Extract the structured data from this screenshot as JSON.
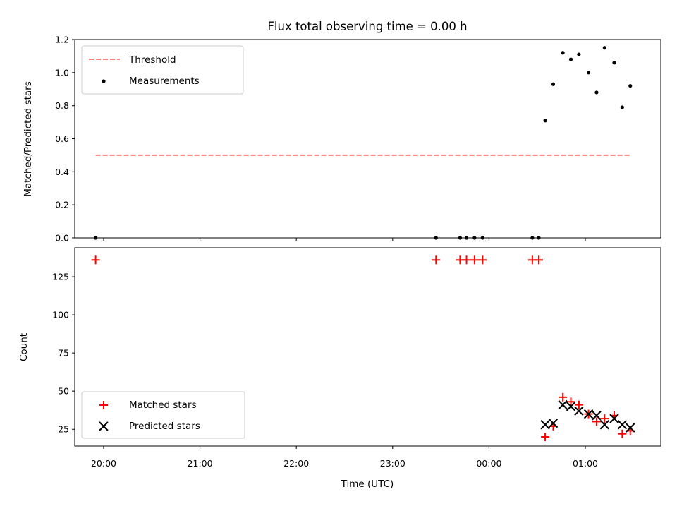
{
  "chart_data": [
    {
      "type": "scatter",
      "title": "Flux total observing time = 0.00 h",
      "ylabel": "Matched/Predicted stars",
      "xlabel": "",
      "ylim": [
        0,
        1.2
      ],
      "yticks": [
        "0.0",
        "0.2",
        "0.4",
        "0.6",
        "0.8",
        "1.0",
        "1.2"
      ],
      "x_time_range": [
        "19:42",
        "01:47"
      ],
      "grid": false,
      "legend": {
        "placement": "top-left",
        "entries": [
          "Threshold",
          "Measurements"
        ]
      },
      "threshold": {
        "name": "Threshold",
        "value": 0.5,
        "x_start": "19:55",
        "x_end": "01:28",
        "color": "#ff7f7f",
        "style": "dashed"
      },
      "series": [
        {
          "name": "Measurements",
          "color": "#000000",
          "marker": "dot",
          "points": [
            {
              "x": "19:55",
              "y": 0.0
            },
            {
              "x": "23:27",
              "y": 0.0
            },
            {
              "x": "23:42",
              "y": 0.0
            },
            {
              "x": "23:46",
              "y": 0.0
            },
            {
              "x": "23:51",
              "y": 0.0
            },
            {
              "x": "23:56",
              "y": 0.0
            },
            {
              "x": "00:27",
              "y": 0.0
            },
            {
              "x": "00:31",
              "y": 0.0
            },
            {
              "x": "00:35",
              "y": 0.71
            },
            {
              "x": "00:40",
              "y": 0.93
            },
            {
              "x": "00:46",
              "y": 1.12
            },
            {
              "x": "00:51",
              "y": 1.08
            },
            {
              "x": "00:56",
              "y": 1.11
            },
            {
              "x": "01:02",
              "y": 1.0
            },
            {
              "x": "01:07",
              "y": 0.88
            },
            {
              "x": "01:12",
              "y": 1.15
            },
            {
              "x": "01:18",
              "y": 1.06
            },
            {
              "x": "01:23",
              "y": 0.79
            },
            {
              "x": "01:28",
              "y": 0.92
            }
          ]
        }
      ]
    },
    {
      "type": "scatter",
      "title": "",
      "xlabel": "Time (UTC)",
      "ylabel": "Count",
      "ylim": [
        14,
        144
      ],
      "yticks": [
        "25",
        "50",
        "75",
        "100",
        "125"
      ],
      "xticks": [
        "20:00",
        "21:00",
        "22:00",
        "23:00",
        "00:00",
        "01:00"
      ],
      "x_time_range": [
        "19:42",
        "01:47"
      ],
      "grid": false,
      "legend": {
        "placement": "bottom-left",
        "entries": [
          "Matched stars",
          "Predicted stars"
        ]
      },
      "series": [
        {
          "name": "Matched stars",
          "color": "#ff0000",
          "marker": "plus",
          "points": [
            {
              "x": "19:55",
              "y": 136
            },
            {
              "x": "23:27",
              "y": 136
            },
            {
              "x": "23:42",
              "y": 136
            },
            {
              "x": "23:46",
              "y": 136
            },
            {
              "x": "23:51",
              "y": 136
            },
            {
              "x": "23:56",
              "y": 136
            },
            {
              "x": "00:27",
              "y": 136
            },
            {
              "x": "00:31",
              "y": 136
            },
            {
              "x": "00:35",
              "y": 20
            },
            {
              "x": "00:40",
              "y": 27
            },
            {
              "x": "00:46",
              "y": 46
            },
            {
              "x": "00:51",
              "y": 43
            },
            {
              "x": "00:56",
              "y": 41
            },
            {
              "x": "01:02",
              "y": 35
            },
            {
              "x": "01:07",
              "y": 30
            },
            {
              "x": "01:12",
              "y": 32
            },
            {
              "x": "01:18",
              "y": 34
            },
            {
              "x": "01:23",
              "y": 22
            },
            {
              "x": "01:28",
              "y": 24
            }
          ]
        },
        {
          "name": "Predicted stars",
          "color": "#000000",
          "marker": "x",
          "points": [
            {
              "x": "00:35",
              "y": 28
            },
            {
              "x": "00:40",
              "y": 29
            },
            {
              "x": "00:46",
              "y": 41
            },
            {
              "x": "00:51",
              "y": 40
            },
            {
              "x": "00:56",
              "y": 37
            },
            {
              "x": "01:02",
              "y": 35
            },
            {
              "x": "01:07",
              "y": 34
            },
            {
              "x": "01:12",
              "y": 28
            },
            {
              "x": "01:18",
              "y": 32
            },
            {
              "x": "01:23",
              "y": 28
            },
            {
              "x": "01:28",
              "y": 26
            }
          ]
        }
      ]
    }
  ]
}
